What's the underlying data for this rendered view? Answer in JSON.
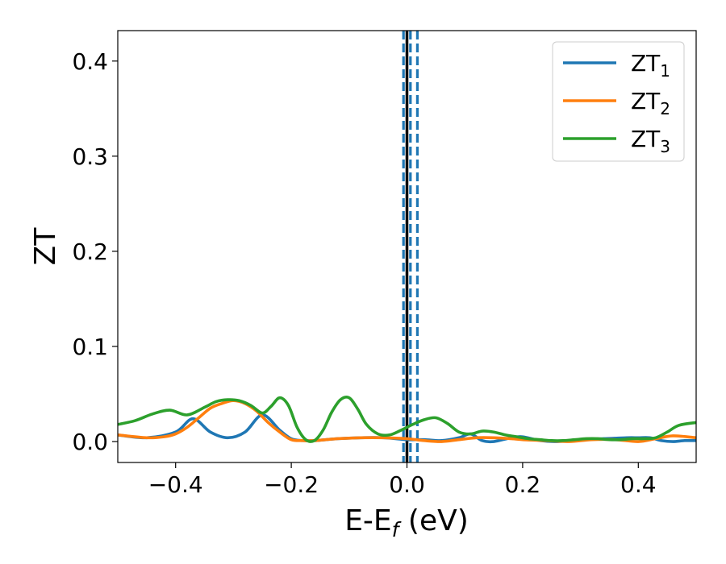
{
  "chart_data": {
    "type": "line",
    "title": "",
    "xlabel": {
      "main": "E-E",
      "sub": "f",
      "tail": " (eV)"
    },
    "ylabel": "ZT",
    "xlim": [
      -0.5,
      0.5
    ],
    "ylim": [
      -0.022,
      0.432
    ],
    "xticks": [
      -0.4,
      -0.2,
      0.0,
      0.2,
      0.4
    ],
    "xtick_labels": [
      "−0.4",
      "−0.2",
      "0.0",
      "0.2",
      "0.4"
    ],
    "yticks": [
      0.0,
      0.1,
      0.2,
      0.3,
      0.4
    ],
    "ytick_labels": [
      "0.0",
      "0.1",
      "0.2",
      "0.3",
      "0.4"
    ],
    "grid": false,
    "legend_position": "top-right",
    "vertical_lines": [
      {
        "x": 0.0,
        "color": "#000000",
        "style": "solid"
      },
      {
        "x": -0.006,
        "color": "#1f77b4",
        "style": "dashed"
      },
      {
        "x": 0.006,
        "color": "#1f77b4",
        "style": "dashed"
      },
      {
        "x": 0.018,
        "color": "#1f77b4",
        "style": "dashed"
      }
    ],
    "series": [
      {
        "name": "ZT",
        "sub": "1",
        "color": "#1f77b4",
        "x": [
          -0.5,
          -0.45,
          -0.4,
          -0.37,
          -0.34,
          -0.31,
          -0.28,
          -0.25,
          -0.22,
          -0.2,
          -0.18,
          -0.16,
          -0.12,
          -0.08,
          -0.04,
          0.0,
          0.03,
          0.06,
          0.09,
          0.11,
          0.13,
          0.15,
          0.18,
          0.2,
          0.23,
          0.26,
          0.3,
          0.34,
          0.38,
          0.4,
          0.42,
          0.44,
          0.46,
          0.48,
          0.5
        ],
        "y": [
          0.007,
          0.004,
          0.01,
          0.024,
          0.01,
          0.004,
          0.01,
          0.028,
          0.012,
          0.003,
          0.001,
          0.001,
          0.003,
          0.004,
          0.004,
          0.002,
          0.002,
          0.001,
          0.004,
          0.008,
          0.001,
          0.0,
          0.004,
          0.005,
          0.001,
          0.0,
          0.002,
          0.003,
          0.004,
          0.004,
          0.004,
          0.001,
          0.0,
          0.001,
          0.001
        ]
      },
      {
        "name": "ZT",
        "sub": "2",
        "color": "#ff7f0e",
        "x": [
          -0.5,
          -0.45,
          -0.42,
          -0.4,
          -0.38,
          -0.36,
          -0.34,
          -0.32,
          -0.3,
          -0.28,
          -0.26,
          -0.24,
          -0.22,
          -0.2,
          -0.18,
          -0.16,
          -0.12,
          -0.08,
          -0.04,
          0.0,
          0.03,
          0.06,
          0.09,
          0.12,
          0.15,
          0.18,
          0.2,
          0.24,
          0.28,
          0.32,
          0.36,
          0.4,
          0.43,
          0.46,
          0.5
        ],
        "y": [
          0.007,
          0.004,
          0.005,
          0.008,
          0.015,
          0.025,
          0.035,
          0.04,
          0.043,
          0.04,
          0.032,
          0.02,
          0.01,
          0.002,
          0.001,
          0.001,
          0.003,
          0.004,
          0.004,
          0.003,
          0.001,
          0.0,
          0.002,
          0.004,
          0.004,
          0.003,
          0.002,
          0.001,
          0.0,
          0.002,
          0.002,
          0.0,
          0.003,
          0.006,
          0.004
        ]
      },
      {
        "name": "ZT",
        "sub": "3",
        "color": "#2ca02c",
        "x": [
          -0.5,
          -0.47,
          -0.44,
          -0.41,
          -0.38,
          -0.35,
          -0.33,
          -0.31,
          -0.29,
          -0.27,
          -0.25,
          -0.235,
          -0.22,
          -0.205,
          -0.19,
          -0.175,
          -0.16,
          -0.145,
          -0.13,
          -0.115,
          -0.1,
          -0.085,
          -0.07,
          -0.05,
          -0.03,
          -0.01,
          0.01,
          0.03,
          0.05,
          0.07,
          0.09,
          0.11,
          0.13,
          0.15,
          0.17,
          0.19,
          0.21,
          0.23,
          0.25,
          0.27,
          0.29,
          0.31,
          0.33,
          0.35,
          0.37,
          0.39,
          0.41,
          0.43,
          0.45,
          0.47,
          0.5
        ],
        "y": [
          0.018,
          0.022,
          0.029,
          0.033,
          0.028,
          0.036,
          0.042,
          0.044,
          0.043,
          0.038,
          0.03,
          0.037,
          0.046,
          0.038,
          0.015,
          0.002,
          0.001,
          0.012,
          0.031,
          0.044,
          0.046,
          0.034,
          0.018,
          0.008,
          0.007,
          0.012,
          0.018,
          0.023,
          0.025,
          0.019,
          0.01,
          0.008,
          0.011,
          0.01,
          0.007,
          0.005,
          0.003,
          0.002,
          0.001,
          0.001,
          0.002,
          0.003,
          0.003,
          0.002,
          0.002,
          0.003,
          0.003,
          0.004,
          0.01,
          0.017,
          0.02
        ]
      }
    ]
  }
}
